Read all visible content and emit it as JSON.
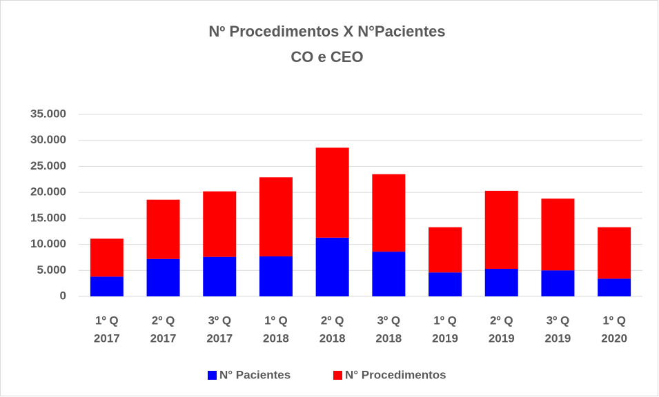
{
  "chart_data": {
    "type": "stacked_bar",
    "title": "Nº Procedimentos  X  N°Pacientes",
    "subtitle": "CO e CEO",
    "categories": [
      [
        "1º Q",
        "2017"
      ],
      [
        "2º Q",
        "2017"
      ],
      [
        "3º Q",
        "2017"
      ],
      [
        "1º Q",
        "2018"
      ],
      [
        "2º Q",
        "2018"
      ],
      [
        "3º Q",
        "2018"
      ],
      [
        "1º Q",
        "2019"
      ],
      [
        "2º Q",
        "2019"
      ],
      [
        "3º Q",
        "2019"
      ],
      [
        "1º Q",
        "2020"
      ]
    ],
    "series": [
      {
        "name": "N° Pacientes",
        "color": "#0000ff",
        "values": [
          3800,
          7200,
          7600,
          7700,
          11300,
          8600,
          4600,
          5300,
          5000,
          3400
        ]
      },
      {
        "name": "N° Procedimentos",
        "color": "#ff0000",
        "values": [
          7300,
          11400,
          12600,
          15200,
          17300,
          14900,
          8700,
          15000,
          13800,
          9900
        ]
      }
    ],
    "ylim": [
      0,
      35000
    ],
    "yticks": [
      0,
      {
        "value": 5000,
        "label": "5.000"
      },
      {
        "value": 10000,
        "label": "10.000"
      },
      {
        "value": 15000,
        "label": "15.000"
      },
      {
        "value": 20000,
        "label": "20.000"
      },
      {
        "value": 25000,
        "label": "25.000"
      },
      {
        "value": 30000,
        "label": "30.000"
      },
      {
        "value": 35000,
        "label": "35.000"
      }
    ],
    "grid": true,
    "legend": "bottom"
  }
}
